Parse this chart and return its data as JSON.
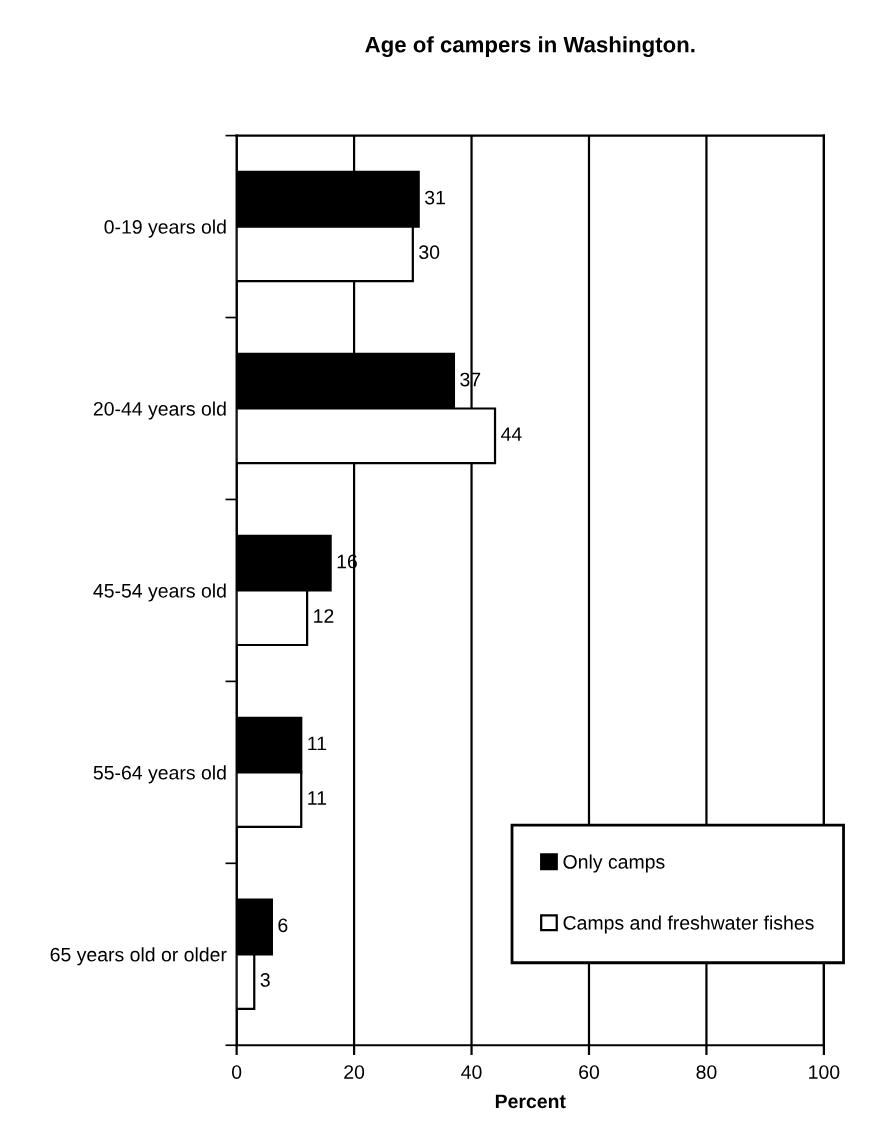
{
  "chart_data": {
    "type": "bar",
    "orientation": "horizontal",
    "title": "Age of campers in Washington.",
    "xlabel": "Percent",
    "categories": [
      "0-19 years old",
      "20-44 years old",
      "45-54 years old",
      "55-64 years old",
      "65 years old or older"
    ],
    "series": [
      {
        "name": "Only camps",
        "color": "#000000",
        "values": [
          31,
          37,
          16,
          11,
          6
        ]
      },
      {
        "name": "Camps and freshwater fishes",
        "color": "#ffffff",
        "values": [
          30,
          44,
          12,
          11,
          3
        ]
      }
    ],
    "xlim": [
      0,
      100
    ],
    "xticks": [
      0,
      20,
      40,
      60,
      80,
      100
    ],
    "grid": "x",
    "legend": "bottom right",
    "data_labels": true
  }
}
